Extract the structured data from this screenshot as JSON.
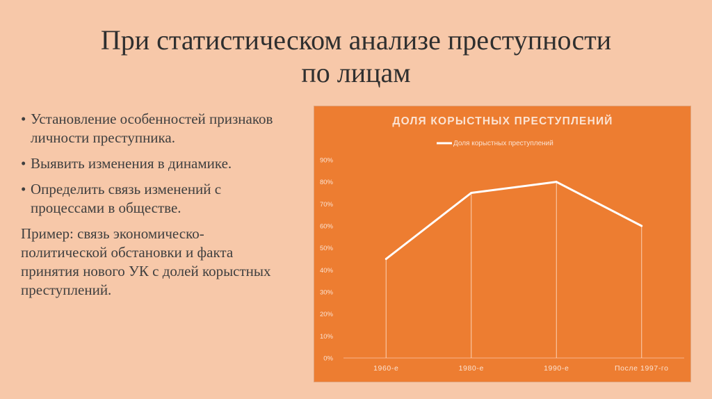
{
  "slide": {
    "title_line1": "При статистическом анализе преступности",
    "title_line2": "по лицам",
    "bullets": [
      "Установление особенностей признаков личности преступника.",
      "Выявить изменения в динамике.",
      "Определить связь изменений с процессами в обществе."
    ],
    "bullet_marker": "•",
    "example": "Пример: связь экономическо-политической обстановки и факта принятия нового УК с долей корыстных преступлений."
  },
  "colors": {
    "background": "#f7c8a9",
    "chart_fill": "#ed7d31",
    "series_line": "#ffffff"
  },
  "chart_data": {
    "type": "line",
    "title": "ДОЛЯ КОРЫСТНЫХ ПРЕСТУПЛЕНИЙ",
    "categories": [
      "1960-е",
      "1980-е",
      "1990-е",
      "После 1997-го"
    ],
    "series": [
      {
        "name": "Доля корыстных преступлений",
        "values": [
          45,
          75,
          80,
          60
        ]
      }
    ],
    "y_ticks": [
      "0%",
      "10%",
      "20%",
      "30%",
      "40%",
      "50%",
      "60%",
      "70%",
      "80%",
      "90%"
    ],
    "ylim": [
      0,
      90
    ],
    "legend": "top-center",
    "grid": false,
    "drop_lines": true
  }
}
